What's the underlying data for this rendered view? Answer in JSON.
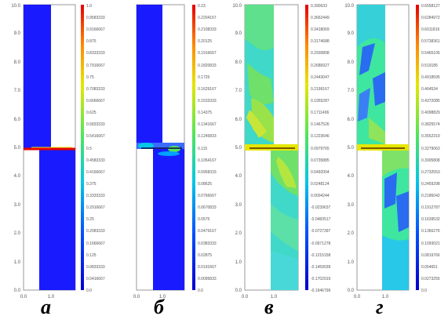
{
  "panels": [
    {
      "letter": "а",
      "x_ticks": [
        "0.0",
        "1.0"
      ],
      "y_ticks": [
        "0.0",
        "1.0",
        "2.0",
        "3.0",
        "4.0",
        "5.0",
        "6.0",
        "7.0",
        "8.0",
        "9.0",
        "10.0"
      ],
      "colorbar_ticks": [
        "1.0",
        "0.9583333",
        "0.9166667",
        "0.875",
        "0.8333333",
        "0.7916667",
        "0.75",
        "0.7083333",
        "0.6666667",
        "0.625",
        "0.5833333",
        "0.5416667",
        "0.5",
        "0.4583333",
        "0.4166667",
        "0.375",
        "0.3333333",
        "0.2916667",
        "0.25",
        "0.2083333",
        "0.1666667",
        "0.125",
        "0.0833333",
        "0.0416667",
        "0.0"
      ]
    },
    {
      "letter": "б",
      "x_ticks": [
        "0.0",
        "1.0"
      ],
      "y_ticks": [
        "",
        "",
        "",
        "",
        "",
        "",
        "",
        "",
        "",
        "",
        ""
      ],
      "colorbar_ticks": [
        "0.23",
        "0.2204167",
        "0.2108333",
        "0.20125",
        "0.1916667",
        "0.1820833",
        "0.1725",
        "0.1629167",
        "0.1533333",
        "0.14375",
        "0.1341667",
        "0.1245833",
        "0.115",
        "0.1054167",
        "0.0958333",
        "0.08625",
        "0.0766667",
        "0.0670833",
        "0.0575",
        "0.0479167",
        "0.0383333",
        "0.02875",
        "0.0191667",
        "0.0095833",
        "0.0"
      ]
    },
    {
      "letter": "в",
      "x_ticks": [
        "0.0",
        "1.0"
      ],
      "y_ticks": [
        "0.0",
        "1.0",
        "2.0",
        "3.0",
        "4.0",
        "5.0",
        "6.0",
        "7.0",
        "8.0",
        "9.0",
        "10.0"
      ],
      "colorbar_ticks": [
        "0.390633",
        "0.3662449",
        "0.3418069",
        "0.3174688",
        "0.2930808",
        "0.2686927",
        "0.2443047",
        "0.2199167",
        "0.1955287",
        "0.1711406",
        "0.1467526",
        "0.1223646",
        "0.0979765",
        "0.0735885",
        "0.0492004",
        "0.0248124",
        "0.0004244",
        "-0.0239637",
        "-0.0483517",
        "-0.0727397",
        "-0.0971278",
        "-0.1215158",
        "-0.1459039",
        "-0.1702919",
        "-0.1946799"
      ]
    },
    {
      "letter": "г",
      "x_ticks": [
        "0.0",
        "1.0"
      ],
      "y_ticks": [
        "0.0",
        "1.0",
        "2.0",
        "3.0",
        "4.0",
        "5.0",
        "6.0",
        "7.0",
        "8.0",
        "9.0",
        "10.0"
      ],
      "colorbar_ticks": [
        "0.6558127",
        "0.6284972",
        "0.6011816",
        "0.5738361",
        "0.5465106",
        "0.519185",
        "0.4918595",
        "0.464534",
        "0.4372085",
        "0.4098829",
        "0.3825574",
        "0.3552319",
        "0.3279063",
        "0.3005808",
        "0.2732553",
        "0.2459298",
        "0.2186042",
        "0.1912787",
        "0.1639532",
        "0.1366276",
        "0.1093021",
        "0.0819766",
        "0.054651",
        "0.0273255",
        "0.0"
      ]
    }
  ],
  "colors": {
    "blue": "#1a1aff",
    "cyan": "#00c8e6",
    "green": "#55e655",
    "yellow": "#e6e600",
    "red": "#e60000"
  }
}
